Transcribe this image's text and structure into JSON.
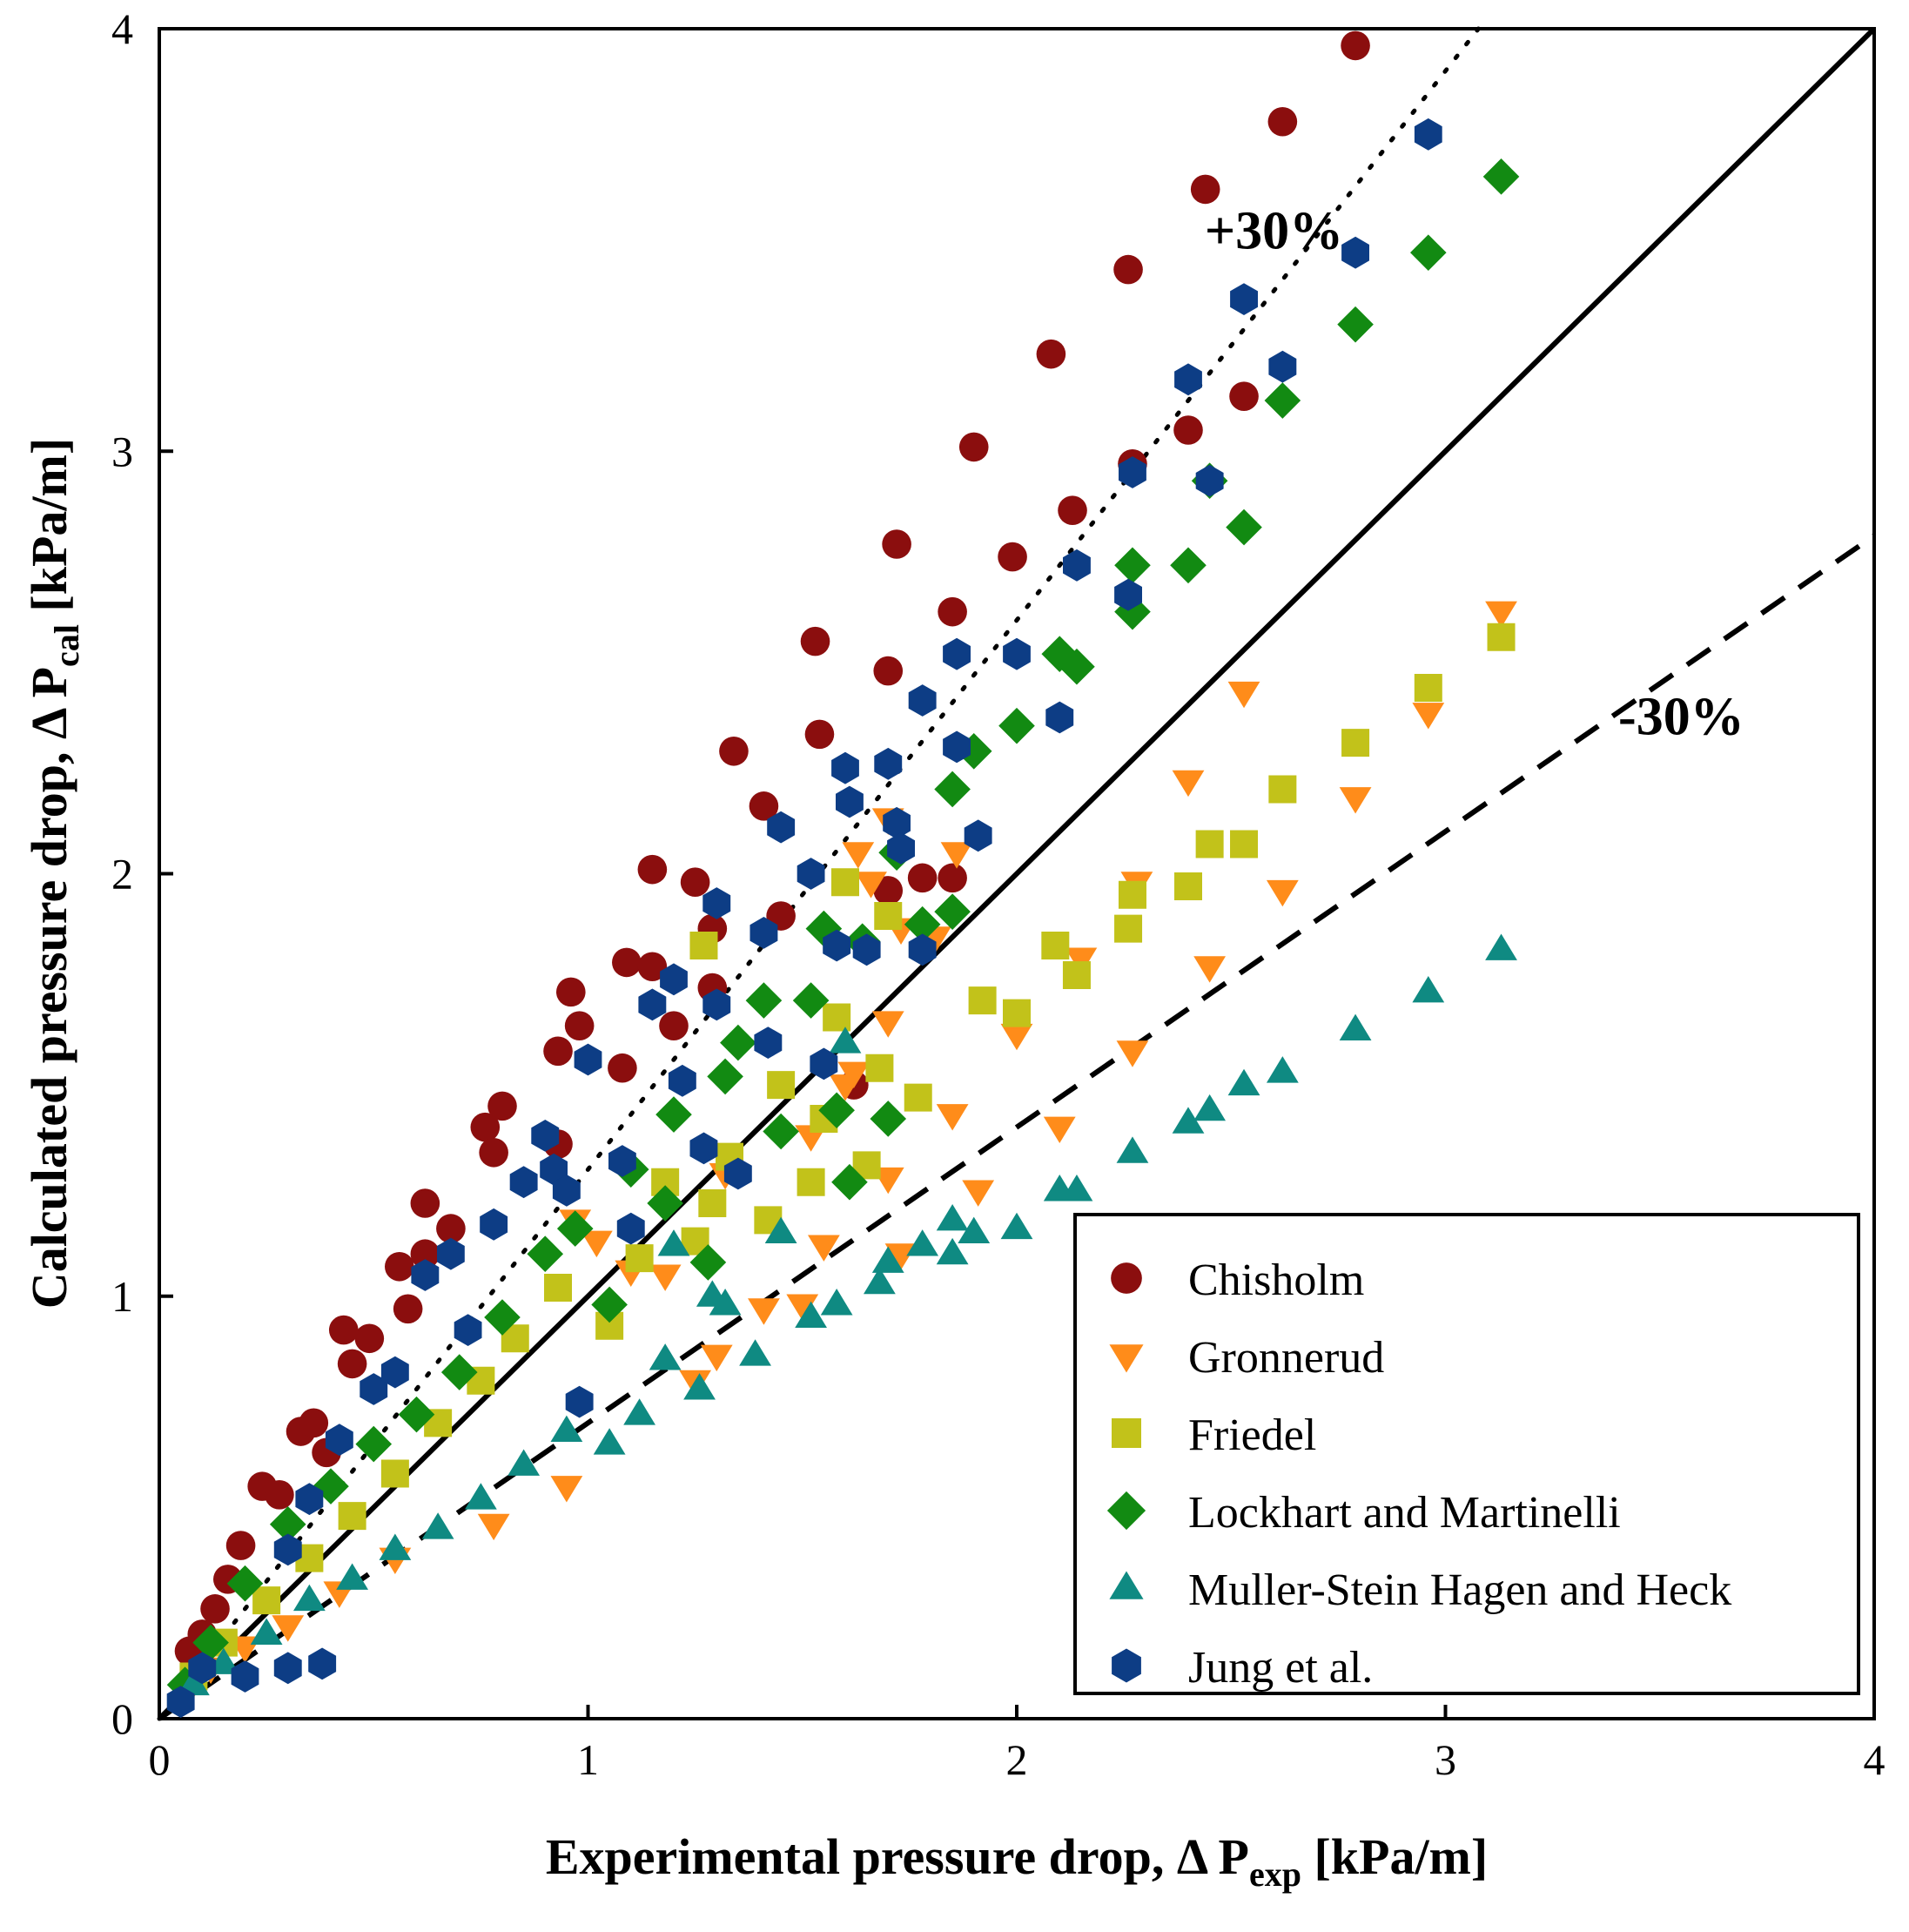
{
  "chart_data": {
    "type": "scatter",
    "xlabel": {
      "main": "Experimental pressure drop, Δ  P",
      "sub": "exp",
      "unit": " [kPa/m]"
    },
    "ylabel": {
      "main": "Calculated pressure drop, Δ  P",
      "sub": "cal",
      "unit": " [kPa/m]"
    },
    "xlim": [
      0,
      4
    ],
    "ylim": [
      0,
      4
    ],
    "xticks": [
      "0",
      "1",
      "2",
      "3",
      "4"
    ],
    "yticks": [
      "0",
      "1",
      "2",
      "3",
      "4"
    ],
    "grid": false,
    "legend_position": "bottom-right",
    "annotations": [
      {
        "text": "+30%",
        "x": 2.6,
        "y": 3.48
      },
      {
        "text": "-30%",
        "x": 3.55,
        "y": 2.33
      }
    ],
    "reference_lines": [
      {
        "name": "parity",
        "style": "solid",
        "slope": 1.0
      },
      {
        "name": "+30%",
        "style": "dotted",
        "slope": 1.3
      },
      {
        "name": "-30%",
        "style": "dashed",
        "slope": 0.7
      }
    ],
    "series": [
      {
        "name": "Chisholm",
        "marker": "circle",
        "color": "#8b0e0e",
        "points": [
          [
            0.07,
            0.16
          ],
          [
            0.1,
            0.2
          ],
          [
            0.13,
            0.26
          ],
          [
            0.16,
            0.33
          ],
          [
            0.19,
            0.41
          ],
          [
            0.24,
            0.55
          ],
          [
            0.28,
            0.53
          ],
          [
            0.33,
            0.68
          ],
          [
            0.36,
            0.7
          ],
          [
            0.39,
            0.63
          ],
          [
            0.43,
            0.92
          ],
          [
            0.45,
            0.84
          ],
          [
            0.49,
            0.9
          ],
          [
            0.56,
            1.07
          ],
          [
            0.58,
            0.97
          ],
          [
            0.62,
            1.1
          ],
          [
            0.62,
            1.22
          ],
          [
            0.68,
            1.16
          ],
          [
            0.76,
            1.4
          ],
          [
            0.8,
            1.45
          ],
          [
            0.78,
            1.34
          ],
          [
            0.93,
            1.36
          ],
          [
            0.96,
            1.72
          ],
          [
            0.98,
            1.64
          ],
          [
            0.93,
            1.58
          ],
          [
            1.08,
            1.54
          ],
          [
            1.09,
            1.79
          ],
          [
            1.15,
            1.78
          ],
          [
            1.15,
            2.01
          ],
          [
            1.2,
            1.64
          ],
          [
            1.25,
            1.98
          ],
          [
            1.29,
            1.73
          ],
          [
            1.29,
            1.87
          ],
          [
            1.34,
            2.29
          ],
          [
            1.41,
            2.16
          ],
          [
            1.45,
            1.9
          ],
          [
            1.53,
            2.55
          ],
          [
            1.54,
            2.33
          ],
          [
            1.62,
            1.5
          ],
          [
            1.7,
            1.96
          ],
          [
            1.7,
            2.48
          ],
          [
            1.72,
            2.78
          ],
          [
            1.78,
            1.99
          ],
          [
            1.85,
            1.99
          ],
          [
            1.85,
            2.62
          ],
          [
            1.9,
            3.01
          ],
          [
            1.99,
            2.75
          ],
          [
            2.08,
            3.23
          ],
          [
            2.13,
            2.86
          ],
          [
            2.26,
            3.43
          ],
          [
            2.27,
            2.97
          ],
          [
            2.4,
            3.05
          ],
          [
            2.44,
            3.62
          ],
          [
            2.53,
            3.13
          ],
          [
            2.62,
            3.78
          ],
          [
            2.79,
            3.96
          ]
        ]
      },
      {
        "name": "Gronnerud",
        "marker": "triangle-down",
        "color": "#ff8c1a",
        "points": [
          [
            0.07,
            0.07
          ],
          [
            0.12,
            0.12
          ],
          [
            0.2,
            0.17
          ],
          [
            0.3,
            0.22
          ],
          [
            0.42,
            0.3
          ],
          [
            0.55,
            0.38
          ],
          [
            0.78,
            0.46
          ],
          [
            0.95,
            0.55
          ],
          [
            0.97,
            1.18
          ],
          [
            1.02,
            1.13
          ],
          [
            1.1,
            1.06
          ],
          [
            1.18,
            1.05
          ],
          [
            1.25,
            0.8
          ],
          [
            1.3,
            0.86
          ],
          [
            1.32,
            1.29
          ],
          [
            1.41,
            0.97
          ],
          [
            1.5,
            0.98
          ],
          [
            1.52,
            1.38
          ],
          [
            1.55,
            1.12
          ],
          [
            1.6,
            1.5
          ],
          [
            1.62,
            1.53
          ],
          [
            1.63,
            2.05
          ],
          [
            1.66,
            1.98
          ],
          [
            1.7,
            2.13
          ],
          [
            1.73,
            1.87
          ],
          [
            1.7,
            1.65
          ],
          [
            1.73,
            1.1
          ],
          [
            1.7,
            1.28
          ],
          [
            1.81,
            1.85
          ],
          [
            1.86,
            2.05
          ],
          [
            1.85,
            1.43
          ],
          [
            1.91,
            1.25
          ],
          [
            2.0,
            1.62
          ],
          [
            2.1,
            1.4
          ],
          [
            2.15,
            1.8
          ],
          [
            2.27,
            1.58
          ],
          [
            2.28,
            1.98
          ],
          [
            2.4,
            2.22
          ],
          [
            2.45,
            1.78
          ],
          [
            2.53,
            2.43
          ],
          [
            2.62,
            1.96
          ],
          [
            2.79,
            2.18
          ],
          [
            2.96,
            2.38
          ],
          [
            3.13,
            2.62
          ]
        ]
      },
      {
        "name": "Friedel",
        "marker": "square",
        "color": "#c2c21a",
        "points": [
          [
            0.08,
            0.1
          ],
          [
            0.15,
            0.18
          ],
          [
            0.25,
            0.28
          ],
          [
            0.35,
            0.38
          ],
          [
            0.45,
            0.48
          ],
          [
            0.55,
            0.58
          ],
          [
            0.65,
            0.7
          ],
          [
            0.75,
            0.8
          ],
          [
            0.83,
            0.9
          ],
          [
            0.93,
            1.02
          ],
          [
            1.05,
            0.93
          ],
          [
            1.12,
            1.09
          ],
          [
            1.18,
            1.27
          ],
          [
            1.25,
            1.13
          ],
          [
            1.29,
            1.22
          ],
          [
            1.27,
            1.83
          ],
          [
            1.33,
            1.33
          ],
          [
            1.42,
            1.18
          ],
          [
            1.45,
            1.5
          ],
          [
            1.52,
            1.27
          ],
          [
            1.55,
            1.42
          ],
          [
            1.58,
            1.66
          ],
          [
            1.6,
            1.98
          ],
          [
            1.65,
            1.31
          ],
          [
            1.68,
            1.54
          ],
          [
            1.7,
            1.9
          ],
          [
            1.77,
            1.47
          ],
          [
            1.92,
            1.7
          ],
          [
            2.0,
            1.67
          ],
          [
            2.09,
            1.83
          ],
          [
            2.14,
            1.76
          ],
          [
            2.26,
            1.87
          ],
          [
            2.27,
            1.95
          ],
          [
            2.4,
            1.97
          ],
          [
            2.45,
            2.07
          ],
          [
            2.53,
            2.07
          ],
          [
            2.62,
            2.2
          ],
          [
            2.79,
            2.31
          ],
          [
            2.96,
            2.44
          ],
          [
            3.13,
            2.56
          ]
        ]
      },
      {
        "name": "Lockhart and Martinelli",
        "marker": "diamond",
        "color": "#128a12",
        "points": [
          [
            0.06,
            0.08
          ],
          [
            0.12,
            0.18
          ],
          [
            0.2,
            0.32
          ],
          [
            0.3,
            0.46
          ],
          [
            0.4,
            0.55
          ],
          [
            0.5,
            0.65
          ],
          [
            0.6,
            0.72
          ],
          [
            0.7,
            0.82
          ],
          [
            0.8,
            0.95
          ],
          [
            0.9,
            1.1
          ],
          [
            0.97,
            1.16
          ],
          [
            1.05,
            0.98
          ],
          [
            1.1,
            1.3
          ],
          [
            1.18,
            1.22
          ],
          [
            1.2,
            1.43
          ],
          [
            1.28,
            1.08
          ],
          [
            1.32,
            1.52
          ],
          [
            1.35,
            1.6
          ],
          [
            1.41,
            1.7
          ],
          [
            1.45,
            1.39
          ],
          [
            1.52,
            1.7
          ],
          [
            1.55,
            1.87
          ],
          [
            1.58,
            1.44
          ],
          [
            1.61,
            1.27
          ],
          [
            1.64,
            1.84
          ],
          [
            1.7,
            1.42
          ],
          [
            1.72,
            2.05
          ],
          [
            1.78,
            1.88
          ],
          [
            1.85,
            1.91
          ],
          [
            1.85,
            2.2
          ],
          [
            1.9,
            2.29
          ],
          [
            2.0,
            2.35
          ],
          [
            2.1,
            2.52
          ],
          [
            2.14,
            2.49
          ],
          [
            2.27,
            2.62
          ],
          [
            2.27,
            2.73
          ],
          [
            2.4,
            2.73
          ],
          [
            2.45,
            2.93
          ],
          [
            2.53,
            2.82
          ],
          [
            2.62,
            3.12
          ],
          [
            2.79,
            3.3
          ],
          [
            2.96,
            3.47
          ],
          [
            3.13,
            3.65
          ]
        ]
      },
      {
        "name": "Muller-Stein Hagen and Heck",
        "marker": "triangle-up",
        "color": "#0f8a82",
        "points": [
          [
            0.08,
            0.08
          ],
          [
            0.15,
            0.13
          ],
          [
            0.25,
            0.2
          ],
          [
            0.35,
            0.28
          ],
          [
            0.45,
            0.33
          ],
          [
            0.55,
            0.4
          ],
          [
            0.65,
            0.45
          ],
          [
            0.75,
            0.52
          ],
          [
            0.85,
            0.6
          ],
          [
            0.95,
            0.68
          ],
          [
            1.05,
            0.65
          ],
          [
            1.12,
            0.72
          ],
          [
            1.18,
            0.85
          ],
          [
            1.2,
            1.12
          ],
          [
            1.26,
            0.78
          ],
          [
            1.29,
            1.0
          ],
          [
            1.32,
            0.98
          ],
          [
            1.39,
            0.86
          ],
          [
            1.45,
            1.15
          ],
          [
            1.52,
            0.95
          ],
          [
            1.58,
            0.98
          ],
          [
            1.6,
            1.6
          ],
          [
            1.68,
            1.03
          ],
          [
            1.7,
            1.08
          ],
          [
            1.78,
            1.12
          ],
          [
            1.85,
            1.1
          ],
          [
            1.85,
            1.18
          ],
          [
            1.9,
            1.15
          ],
          [
            2.0,
            1.16
          ],
          [
            2.1,
            1.25
          ],
          [
            2.14,
            1.25
          ],
          [
            2.27,
            1.34
          ],
          [
            2.4,
            1.41
          ],
          [
            2.45,
            1.44
          ],
          [
            2.53,
            1.5
          ],
          [
            2.62,
            1.53
          ],
          [
            2.79,
            1.63
          ],
          [
            2.96,
            1.72
          ],
          [
            3.13,
            1.82
          ]
        ]
      },
      {
        "name": "Jung et al.",
        "marker": "hexagon",
        "color": "#0d3d85",
        "points": [
          [
            0.05,
            0.04
          ],
          [
            0.1,
            0.12
          ],
          [
            0.2,
            0.1
          ],
          [
            0.3,
            0.12
          ],
          [
            0.38,
            0.13
          ],
          [
            0.3,
            0.4
          ],
          [
            0.35,
            0.52
          ],
          [
            0.42,
            0.66
          ],
          [
            0.5,
            0.78
          ],
          [
            0.55,
            0.82
          ],
          [
            0.62,
            1.05
          ],
          [
            0.68,
            1.1
          ],
          [
            0.72,
            0.92
          ],
          [
            0.78,
            1.17
          ],
          [
            0.85,
            1.27
          ],
          [
            0.9,
            1.38
          ],
          [
            0.92,
            1.3
          ],
          [
            0.95,
            1.25
          ],
          [
            0.98,
            0.75
          ],
          [
            1.0,
            1.56
          ],
          [
            1.08,
            1.32
          ],
          [
            1.1,
            1.16
          ],
          [
            1.15,
            1.69
          ],
          [
            1.2,
            1.75
          ],
          [
            1.22,
            1.51
          ],
          [
            1.27,
            1.35
          ],
          [
            1.3,
            1.69
          ],
          [
            1.3,
            1.93
          ],
          [
            1.35,
            1.29
          ],
          [
            1.41,
            1.86
          ],
          [
            1.42,
            1.6
          ],
          [
            1.45,
            2.11
          ],
          [
            1.52,
            2.0
          ],
          [
            1.55,
            1.55
          ],
          [
            1.58,
            1.83
          ],
          [
            1.6,
            2.25
          ],
          [
            1.61,
            2.17
          ],
          [
            1.65,
            1.82
          ],
          [
            1.7,
            2.26
          ],
          [
            1.72,
            2.12
          ],
          [
            1.73,
            2.06
          ],
          [
            1.78,
            1.82
          ],
          [
            1.78,
            2.41
          ],
          [
            1.86,
            2.3
          ],
          [
            1.86,
            2.52
          ],
          [
            1.91,
            2.09
          ],
          [
            2.0,
            2.52
          ],
          [
            2.1,
            2.37
          ],
          [
            2.14,
            2.73
          ],
          [
            2.26,
            2.66
          ],
          [
            2.27,
            2.95
          ],
          [
            2.4,
            3.17
          ],
          [
            2.45,
            2.93
          ],
          [
            2.53,
            3.36
          ],
          [
            2.62,
            3.2
          ],
          [
            2.79,
            3.47
          ],
          [
            2.96,
            3.75
          ]
        ]
      }
    ]
  }
}
